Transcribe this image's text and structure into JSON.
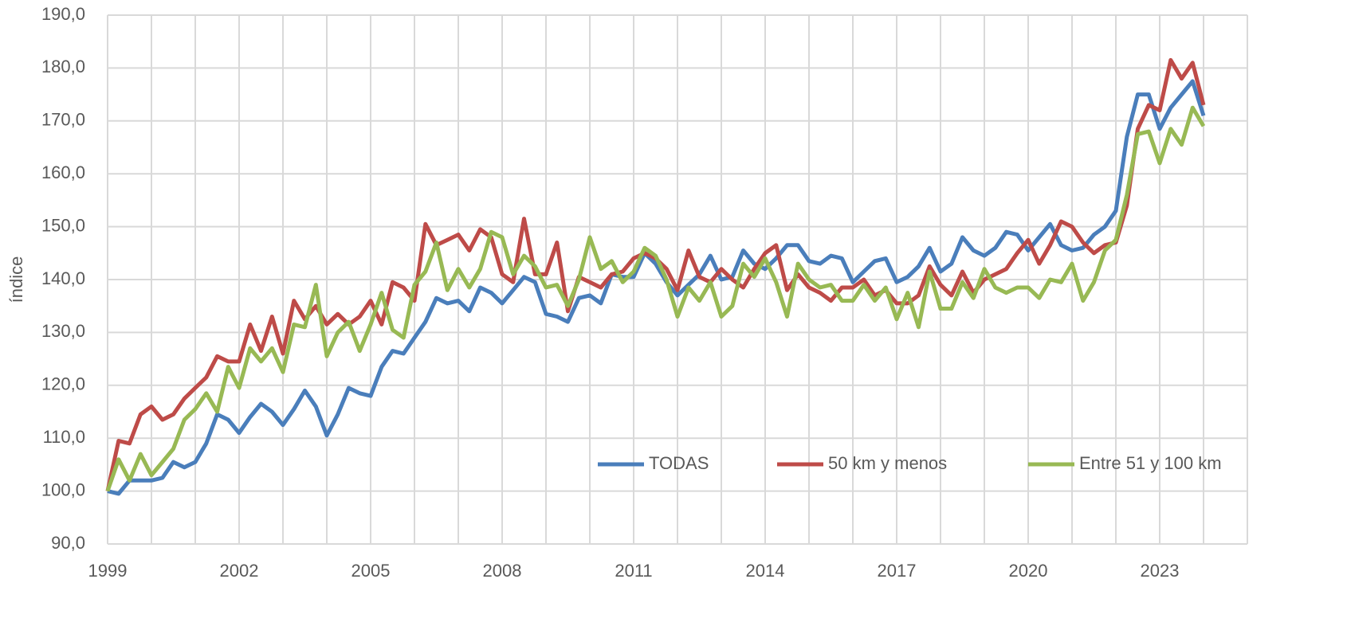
{
  "chart_data": {
    "type": "line",
    "y_label": "índice",
    "x": [
      1999,
      1999.25,
      1999.5,
      1999.75,
      2000,
      2000.25,
      2000.5,
      2000.75,
      2001,
      2001.25,
      2001.5,
      2001.75,
      2002,
      2002.25,
      2002.5,
      2002.75,
      2003,
      2003.25,
      2003.5,
      2003.75,
      2004,
      2004.25,
      2004.5,
      2004.75,
      2005,
      2005.25,
      2005.5,
      2005.75,
      2006,
      2006.25,
      2006.5,
      2006.75,
      2007,
      2007.25,
      2007.5,
      2007.75,
      2008,
      2008.25,
      2008.5,
      2008.75,
      2009,
      2009.25,
      2009.5,
      2009.75,
      2010,
      2010.25,
      2010.5,
      2010.75,
      2011,
      2011.25,
      2011.5,
      2011.75,
      2012,
      2012.25,
      2012.5,
      2012.75,
      2013,
      2013.25,
      2013.5,
      2013.75,
      2014,
      2014.25,
      2014.5,
      2014.75,
      2015,
      2015.25,
      2015.5,
      2015.75,
      2016,
      2016.25,
      2016.5,
      2016.75,
      2017,
      2017.25,
      2017.5,
      2017.75,
      2018,
      2018.25,
      2018.5,
      2018.75,
      2019,
      2019.25,
      2019.5,
      2019.75,
      2020,
      2020.25,
      2020.5,
      2020.75,
      2021,
      2021.25,
      2021.5,
      2021.75,
      2022,
      2022.25,
      2022.5,
      2022.75,
      2023,
      2023.25,
      2023.5,
      2023.75,
      2024
    ],
    "series": [
      {
        "name": "TODAS",
        "color": "#4a7ebb",
        "values": [
          100,
          99.5,
          102,
          102,
          102,
          102.5,
          105.5,
          104.5,
          105.5,
          109,
          114.5,
          113.5,
          111,
          114,
          116.5,
          115,
          112.5,
          115.5,
          119,
          116,
          110.5,
          114.5,
          119.5,
          118.5,
          118,
          123.5,
          126.5,
          126,
          129,
          132,
          136.5,
          135.5,
          136,
          134,
          138.5,
          137.5,
          135.5,
          138,
          140.5,
          139.5,
          133.5,
          133,
          132,
          136.5,
          137,
          135.5,
          141,
          140.5,
          140.5,
          145,
          143,
          139.5,
          137,
          139,
          141,
          144.5,
          140,
          140.5,
          145.5,
          143,
          142,
          144,
          146.5,
          146.5,
          143.5,
          143,
          144.5,
          144,
          139.5,
          141.5,
          143.5,
          144,
          139.5,
          140.5,
          142.5,
          146,
          141.5,
          143,
          148,
          145.5,
          144.5,
          146,
          149,
          148.5,
          145.5,
          148,
          150.5,
          146.5,
          145.5,
          146,
          148.5,
          150,
          153,
          167,
          175,
          175,
          168.5,
          172.5,
          175,
          177.5,
          171
        ]
      },
      {
        "name": "50 km y menos",
        "color": "#be4b48",
        "values": [
          100,
          109.5,
          109,
          114.5,
          116,
          113.5,
          114.5,
          117.5,
          119.5,
          121.5,
          125.5,
          124.5,
          124.5,
          131.5,
          126.5,
          133,
          126,
          136,
          132.5,
          135,
          131.5,
          133.5,
          131.5,
          133,
          136,
          131.5,
          139.5,
          138.5,
          136,
          150.5,
          146.5,
          147.5,
          148.5,
          145.5,
          149.5,
          148,
          141,
          139.5,
          151.5,
          141,
          141,
          147,
          134,
          140.5,
          139.5,
          138.5,
          141,
          141.5,
          144,
          145,
          144,
          142,
          138,
          145.5,
          140.5,
          139.5,
          142,
          140,
          138.5,
          142,
          145,
          146.5,
          138,
          141,
          138.5,
          137.5,
          136,
          138.5,
          138.5,
          140,
          137,
          138,
          135.5,
          135.5,
          137,
          142.5,
          139,
          137,
          141.5,
          137.5,
          140,
          141,
          142,
          145,
          147.5,
          143,
          146.5,
          151,
          150,
          147,
          145,
          146.5,
          147,
          154,
          168.5,
          173,
          172,
          181.5,
          178,
          181,
          173
        ]
      },
      {
        "name": "Entre 51 y 100 km",
        "color": "#98b954",
        "values": [
          100,
          106,
          102,
          107,
          103,
          105.5,
          108,
          113.5,
          115.5,
          118.5,
          115,
          123.5,
          119.5,
          127,
          124.5,
          127,
          122.5,
          131.5,
          131,
          139,
          125.5,
          130,
          132,
          126.5,
          131.5,
          137.5,
          130.5,
          129,
          139,
          141.5,
          147,
          138,
          142,
          138.5,
          142,
          149,
          148,
          141,
          144.5,
          142.5,
          138.5,
          139,
          135,
          140,
          148,
          142,
          143.5,
          139.5,
          141.5,
          146,
          144.5,
          140,
          133,
          138.5,
          136,
          139.5,
          133,
          135,
          143,
          140.5,
          144,
          139.5,
          133,
          143,
          140,
          138.5,
          139,
          136,
          136,
          139,
          136,
          138.5,
          132.5,
          137.5,
          131,
          141.5,
          134.5,
          134.5,
          139.5,
          136.5,
          142,
          138.5,
          137.5,
          138.5,
          138.5,
          136.5,
          140,
          139.5,
          143,
          136,
          139.5,
          145.5,
          147.5,
          156,
          167.5,
          168,
          162,
          168.5,
          165.5,
          172.5,
          169
        ]
      }
    ],
    "xlim": [
      1999,
      2025
    ],
    "xticks": [
      1999,
      2002,
      2005,
      2008,
      2011,
      2014,
      2017,
      2020,
      2023
    ],
    "x_grid": [
      1999,
      2000,
      2001,
      2002,
      2003,
      2004,
      2005,
      2006,
      2007,
      2008,
      2009,
      2010,
      2011,
      2012,
      2013,
      2014,
      2015,
      2016,
      2017,
      2018,
      2019,
      2020,
      2021,
      2022,
      2023,
      2024,
      2025
    ],
    "ylim": [
      90,
      190
    ],
    "yticks": [
      {
        "value": 90,
        "label": "90,0"
      },
      {
        "value": 100,
        "label": "100,0"
      },
      {
        "value": 110,
        "label": "110,0"
      },
      {
        "value": 120,
        "label": "120,0"
      },
      {
        "value": 130,
        "label": "130,0"
      },
      {
        "value": 140,
        "label": "140,0"
      },
      {
        "value": 150,
        "label": "150,0"
      },
      {
        "value": 160,
        "label": "160,0"
      },
      {
        "value": 170,
        "label": "170,0"
      },
      {
        "value": 180,
        "label": "180,0"
      },
      {
        "value": 190,
        "label": "190,0"
      }
    ],
    "grid": true,
    "legend": "lower right"
  }
}
